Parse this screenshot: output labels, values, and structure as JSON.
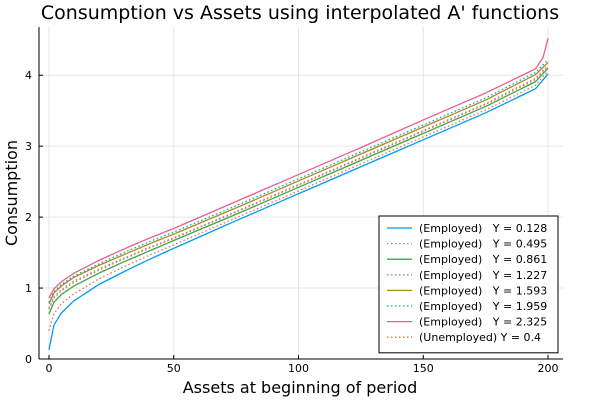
{
  "chart_data": {
    "type": "line",
    "title": "Consumption vs Assets using interpolated A' functions",
    "xlabel": "Assets at beginning of period",
    "ylabel": "Consumption",
    "xlim": [
      -4,
      206
    ],
    "ylim": [
      0,
      4.68
    ],
    "xticks": [
      0,
      50,
      100,
      150,
      200
    ],
    "xtick_labels": [
      "0",
      "50",
      "100",
      "150",
      "200"
    ],
    "yticks": [
      0,
      1,
      2,
      3,
      4
    ],
    "ytick_labels": [
      "0",
      "1",
      "2",
      "3",
      "4"
    ],
    "grid": true,
    "legend_position": "bottom-right",
    "series": [
      {
        "name": "(Employed)   Y = 0.128",
        "color": "#009AFA",
        "dash": "solid",
        "x": [
          0,
          2,
          5,
          10,
          20,
          30,
          40,
          50,
          75,
          100,
          125,
          150,
          175,
          195,
          200
        ],
        "y": [
          0.13,
          0.48,
          0.65,
          0.82,
          1.05,
          1.23,
          1.4,
          1.56,
          1.95,
          2.33,
          2.71,
          3.09,
          3.47,
          3.81,
          4.02
        ]
      },
      {
        "name": "(Employed)   Y = 0.495",
        "color": "#E36F47",
        "dash": "dotted",
        "x": [
          0,
          2,
          5,
          10,
          20,
          30,
          40,
          50,
          75,
          100,
          125,
          150,
          175,
          195,
          200
        ],
        "y": [
          0.4,
          0.64,
          0.78,
          0.92,
          1.13,
          1.3,
          1.46,
          1.61,
          1.99,
          2.37,
          2.75,
          3.13,
          3.51,
          3.86,
          4.06
        ]
      },
      {
        "name": "(Employed)   Y = 0.861",
        "color": "#3EA44E",
        "dash": "solid",
        "x": [
          0,
          2,
          5,
          10,
          20,
          30,
          40,
          50,
          75,
          100,
          125,
          150,
          175,
          195,
          200
        ],
        "y": [
          0.63,
          0.8,
          0.91,
          1.03,
          1.21,
          1.37,
          1.52,
          1.67,
          2.04,
          2.42,
          2.8,
          3.18,
          3.56,
          3.91,
          4.1
        ]
      },
      {
        "name": "(Employed)   Y = 1.227",
        "color": "#C271D2",
        "dash": "dotted",
        "x": [
          0,
          2,
          5,
          10,
          20,
          30,
          40,
          50,
          75,
          100,
          125,
          150,
          175,
          195,
          200
        ],
        "y": [
          0.72,
          0.88,
          0.98,
          1.1,
          1.27,
          1.42,
          1.57,
          1.71,
          2.08,
          2.46,
          2.84,
          3.22,
          3.6,
          3.96,
          4.14
        ]
      },
      {
        "name": "(Employed)   Y = 1.593",
        "color": "#AC8D18",
        "dash": "solid",
        "x": [
          0,
          2,
          5,
          10,
          20,
          30,
          40,
          50,
          75,
          100,
          125,
          150,
          175,
          195,
          200
        ],
        "y": [
          0.78,
          0.93,
          1.03,
          1.15,
          1.32,
          1.47,
          1.62,
          1.76,
          2.13,
          2.51,
          2.89,
          3.27,
          3.65,
          4.01,
          4.18
        ]
      },
      {
        "name": "(Employed)   Y = 1.959",
        "color": "#00A9AD",
        "dash": "dotted",
        "x": [
          0,
          2,
          5,
          10,
          20,
          30,
          40,
          50,
          75,
          100,
          125,
          150,
          175,
          195,
          200
        ],
        "y": [
          0.8,
          0.95,
          1.05,
          1.17,
          1.34,
          1.5,
          1.65,
          1.79,
          2.16,
          2.54,
          2.92,
          3.3,
          3.68,
          4.04,
          4.22
        ]
      },
      {
        "name": "(Employed)   Y = 2.325",
        "color": "#ED5D92",
        "dash": "solid",
        "x": [
          0,
          2,
          5,
          10,
          20,
          30,
          40,
          50,
          75,
          100,
          125,
          150,
          175,
          195,
          198,
          200
        ],
        "y": [
          0.86,
          0.99,
          1.09,
          1.21,
          1.39,
          1.55,
          1.7,
          1.84,
          2.22,
          2.6,
          2.98,
          3.37,
          3.75,
          4.09,
          4.25,
          4.52
        ]
      },
      {
        "name": "(Unemployed) Y = 0.4",
        "color": "#C68125",
        "dash": "dotted",
        "x": [
          0,
          2,
          5,
          10,
          20,
          30,
          40,
          50,
          75,
          100,
          125,
          150,
          175,
          195,
          200
        ],
        "y": [
          0.7,
          0.86,
          0.96,
          1.08,
          1.25,
          1.41,
          1.56,
          1.7,
          2.07,
          2.45,
          2.83,
          3.21,
          3.59,
          3.94,
          4.12
        ]
      }
    ]
  }
}
